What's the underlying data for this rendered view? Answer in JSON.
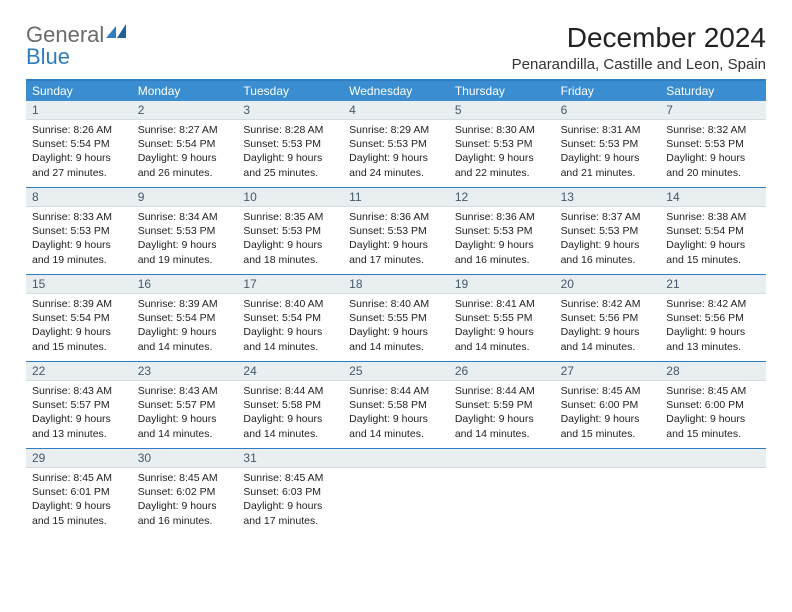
{
  "logo": {
    "text1": "General",
    "text2": "Blue"
  },
  "title": "December 2024",
  "location": "Penarandilla, Castille and Leon, Spain",
  "colors": {
    "header_bg": "#3a8dd0",
    "rule": "#2f7dc0",
    "daynum_bg": "#e9eef1"
  },
  "day_names": [
    "Sunday",
    "Monday",
    "Tuesday",
    "Wednesday",
    "Thursday",
    "Friday",
    "Saturday"
  ],
  "weeks": [
    [
      {
        "n": "1",
        "sunrise": "Sunrise: 8:26 AM",
        "sunset": "Sunset: 5:54 PM",
        "d1": "Daylight: 9 hours",
        "d2": "and 27 minutes."
      },
      {
        "n": "2",
        "sunrise": "Sunrise: 8:27 AM",
        "sunset": "Sunset: 5:54 PM",
        "d1": "Daylight: 9 hours",
        "d2": "and 26 minutes."
      },
      {
        "n": "3",
        "sunrise": "Sunrise: 8:28 AM",
        "sunset": "Sunset: 5:53 PM",
        "d1": "Daylight: 9 hours",
        "d2": "and 25 minutes."
      },
      {
        "n": "4",
        "sunrise": "Sunrise: 8:29 AM",
        "sunset": "Sunset: 5:53 PM",
        "d1": "Daylight: 9 hours",
        "d2": "and 24 minutes."
      },
      {
        "n": "5",
        "sunrise": "Sunrise: 8:30 AM",
        "sunset": "Sunset: 5:53 PM",
        "d1": "Daylight: 9 hours",
        "d2": "and 22 minutes."
      },
      {
        "n": "6",
        "sunrise": "Sunrise: 8:31 AM",
        "sunset": "Sunset: 5:53 PM",
        "d1": "Daylight: 9 hours",
        "d2": "and 21 minutes."
      },
      {
        "n": "7",
        "sunrise": "Sunrise: 8:32 AM",
        "sunset": "Sunset: 5:53 PM",
        "d1": "Daylight: 9 hours",
        "d2": "and 20 minutes."
      }
    ],
    [
      {
        "n": "8",
        "sunrise": "Sunrise: 8:33 AM",
        "sunset": "Sunset: 5:53 PM",
        "d1": "Daylight: 9 hours",
        "d2": "and 19 minutes."
      },
      {
        "n": "9",
        "sunrise": "Sunrise: 8:34 AM",
        "sunset": "Sunset: 5:53 PM",
        "d1": "Daylight: 9 hours",
        "d2": "and 19 minutes."
      },
      {
        "n": "10",
        "sunrise": "Sunrise: 8:35 AM",
        "sunset": "Sunset: 5:53 PM",
        "d1": "Daylight: 9 hours",
        "d2": "and 18 minutes."
      },
      {
        "n": "11",
        "sunrise": "Sunrise: 8:36 AM",
        "sunset": "Sunset: 5:53 PM",
        "d1": "Daylight: 9 hours",
        "d2": "and 17 minutes."
      },
      {
        "n": "12",
        "sunrise": "Sunrise: 8:36 AM",
        "sunset": "Sunset: 5:53 PM",
        "d1": "Daylight: 9 hours",
        "d2": "and 16 minutes."
      },
      {
        "n": "13",
        "sunrise": "Sunrise: 8:37 AM",
        "sunset": "Sunset: 5:53 PM",
        "d1": "Daylight: 9 hours",
        "d2": "and 16 minutes."
      },
      {
        "n": "14",
        "sunrise": "Sunrise: 8:38 AM",
        "sunset": "Sunset: 5:54 PM",
        "d1": "Daylight: 9 hours",
        "d2": "and 15 minutes."
      }
    ],
    [
      {
        "n": "15",
        "sunrise": "Sunrise: 8:39 AM",
        "sunset": "Sunset: 5:54 PM",
        "d1": "Daylight: 9 hours",
        "d2": "and 15 minutes."
      },
      {
        "n": "16",
        "sunrise": "Sunrise: 8:39 AM",
        "sunset": "Sunset: 5:54 PM",
        "d1": "Daylight: 9 hours",
        "d2": "and 14 minutes."
      },
      {
        "n": "17",
        "sunrise": "Sunrise: 8:40 AM",
        "sunset": "Sunset: 5:54 PM",
        "d1": "Daylight: 9 hours",
        "d2": "and 14 minutes."
      },
      {
        "n": "18",
        "sunrise": "Sunrise: 8:40 AM",
        "sunset": "Sunset: 5:55 PM",
        "d1": "Daylight: 9 hours",
        "d2": "and 14 minutes."
      },
      {
        "n": "19",
        "sunrise": "Sunrise: 8:41 AM",
        "sunset": "Sunset: 5:55 PM",
        "d1": "Daylight: 9 hours",
        "d2": "and 14 minutes."
      },
      {
        "n": "20",
        "sunrise": "Sunrise: 8:42 AM",
        "sunset": "Sunset: 5:56 PM",
        "d1": "Daylight: 9 hours",
        "d2": "and 14 minutes."
      },
      {
        "n": "21",
        "sunrise": "Sunrise: 8:42 AM",
        "sunset": "Sunset: 5:56 PM",
        "d1": "Daylight: 9 hours",
        "d2": "and 13 minutes."
      }
    ],
    [
      {
        "n": "22",
        "sunrise": "Sunrise: 8:43 AM",
        "sunset": "Sunset: 5:57 PM",
        "d1": "Daylight: 9 hours",
        "d2": "and 13 minutes."
      },
      {
        "n": "23",
        "sunrise": "Sunrise: 8:43 AM",
        "sunset": "Sunset: 5:57 PM",
        "d1": "Daylight: 9 hours",
        "d2": "and 14 minutes."
      },
      {
        "n": "24",
        "sunrise": "Sunrise: 8:44 AM",
        "sunset": "Sunset: 5:58 PM",
        "d1": "Daylight: 9 hours",
        "d2": "and 14 minutes."
      },
      {
        "n": "25",
        "sunrise": "Sunrise: 8:44 AM",
        "sunset": "Sunset: 5:58 PM",
        "d1": "Daylight: 9 hours",
        "d2": "and 14 minutes."
      },
      {
        "n": "26",
        "sunrise": "Sunrise: 8:44 AM",
        "sunset": "Sunset: 5:59 PM",
        "d1": "Daylight: 9 hours",
        "d2": "and 14 minutes."
      },
      {
        "n": "27",
        "sunrise": "Sunrise: 8:45 AM",
        "sunset": "Sunset: 6:00 PM",
        "d1": "Daylight: 9 hours",
        "d2": "and 15 minutes."
      },
      {
        "n": "28",
        "sunrise": "Sunrise: 8:45 AM",
        "sunset": "Sunset: 6:00 PM",
        "d1": "Daylight: 9 hours",
        "d2": "and 15 minutes."
      }
    ],
    [
      {
        "n": "29",
        "sunrise": "Sunrise: 8:45 AM",
        "sunset": "Sunset: 6:01 PM",
        "d1": "Daylight: 9 hours",
        "d2": "and 15 minutes."
      },
      {
        "n": "30",
        "sunrise": "Sunrise: 8:45 AM",
        "sunset": "Sunset: 6:02 PM",
        "d1": "Daylight: 9 hours",
        "d2": "and 16 minutes."
      },
      {
        "n": "31",
        "sunrise": "Sunrise: 8:45 AM",
        "sunset": "Sunset: 6:03 PM",
        "d1": "Daylight: 9 hours",
        "d2": "and 17 minutes."
      },
      {
        "empty": true
      },
      {
        "empty": true
      },
      {
        "empty": true
      },
      {
        "empty": true
      }
    ]
  ]
}
